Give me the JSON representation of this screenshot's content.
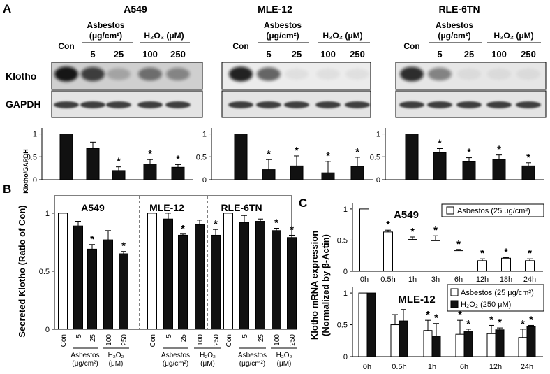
{
  "panel_a": {
    "letter": "A",
    "groups": [
      {
        "title": "A549"
      },
      {
        "title": "MLE-12"
      },
      {
        "title": "RLE-6TN"
      }
    ],
    "lane_con": "Con",
    "asbestos_header": "Asbestos",
    "asbestos_unit": "(μg/cm²)",
    "h2o2_header": "H₂O₂ (μM)",
    "doses": [
      "5",
      "25",
      "100",
      "250"
    ],
    "blot_labels": [
      "Klotho",
      "GAPDH"
    ],
    "y_label": "Klotho/GAPDH",
    "ticks": [
      "0",
      "0.5",
      "1"
    ]
  },
  "panel_b": {
    "letter": "B",
    "y_label": "Secreted Klotho (Ratio of Con)",
    "ticks": [
      "0",
      "0.5",
      "1"
    ],
    "groups": [
      "A549",
      "MLE-12",
      "RLE-6TN"
    ],
    "x_labels": [
      "Con",
      "5",
      "25",
      "100",
      "250"
    ],
    "asbestos_label": "Asbestos",
    "asbestos_unit": "(μg/cm²)",
    "h2o2_label": "H₂O₂",
    "h2o2_unit": "(μM)"
  },
  "panel_c": {
    "letter": "C",
    "y_label_1": "Klotho mRNA expression",
    "y_label_2": "(Normalized by β-Actin)",
    "ticks": [
      "0",
      "0.5",
      "1"
    ],
    "top_title": "A549",
    "bottom_title": "MLE-12",
    "legend_top": "Asbestos (25 μg/cm²)",
    "legend_asbestos": "Asbestos (25 μg/cm²)",
    "legend_h2o2": "H₂O₂ (250 μM)"
  },
  "significance_mark": "*",
  "chart_data": [
    {
      "type": "bar",
      "title": "A549",
      "categories": [
        "Con",
        "5",
        "25",
        "100",
        "250"
      ],
      "ylabel": "Klotho/GAPDH",
      "ylim": [
        0,
        1.1
      ],
      "values": [
        1.0,
        0.68,
        0.2,
        0.34,
        0.27
      ],
      "errors": [
        0.0,
        0.14,
        0.08,
        0.1,
        0.06
      ],
      "significant": [
        false,
        false,
        true,
        true,
        true
      ]
    },
    {
      "type": "bar",
      "title": "MLE-12",
      "categories": [
        "Con",
        "5",
        "25",
        "100",
        "250"
      ],
      "ylim": [
        0,
        1.1
      ],
      "values": [
        1.0,
        0.22,
        0.3,
        0.15,
        0.29
      ],
      "errors": [
        0.0,
        0.22,
        0.22,
        0.25,
        0.2
      ],
      "significant": [
        false,
        true,
        true,
        true,
        true
      ]
    },
    {
      "type": "bar",
      "title": "RLE-6TN",
      "categories": [
        "Con",
        "5",
        "25",
        "100",
        "250"
      ],
      "ylim": [
        0,
        1.1
      ],
      "values": [
        1.0,
        0.59,
        0.39,
        0.44,
        0.3
      ],
      "errors": [
        0.0,
        0.09,
        0.09,
        0.1,
        0.07
      ],
      "significant": [
        false,
        true,
        true,
        true,
        true
      ]
    },
    {
      "type": "bar",
      "title": "A549",
      "categories": [
        "Con",
        "5",
        "25",
        "100",
        "250"
      ],
      "ylabel": "Secreted Klotho (Ratio of Con)",
      "ylim": [
        0,
        1.15
      ],
      "values": [
        1.0,
        0.89,
        0.69,
        0.77,
        0.65
      ],
      "errors": [
        0.0,
        0.04,
        0.04,
        0.08,
        0.02
      ],
      "significant": [
        false,
        false,
        true,
        false,
        true
      ]
    },
    {
      "type": "bar",
      "title": "MLE-12",
      "categories": [
        "Con",
        "5",
        "25",
        "100",
        "250"
      ],
      "ylim": [
        0,
        1.15
      ],
      "values": [
        1.0,
        0.95,
        0.81,
        0.9,
        0.81
      ],
      "errors": [
        0.0,
        0.05,
        0.01,
        0.04,
        0.05
      ],
      "significant": [
        false,
        false,
        true,
        false,
        true
      ]
    },
    {
      "type": "bar",
      "title": "RLE-6TN",
      "categories": [
        "Con",
        "5",
        "25",
        "100",
        "250"
      ],
      "ylim": [
        0,
        1.15
      ],
      "values": [
        1.0,
        0.92,
        0.93,
        0.85,
        0.79
      ],
      "errors": [
        0.0,
        0.06,
        0.02,
        0.02,
        0.02
      ],
      "significant": [
        false,
        false,
        false,
        true,
        true
      ]
    },
    {
      "type": "bar",
      "title": "A549",
      "categories": [
        "0h",
        "0.5h",
        "1h",
        "3h",
        "6h",
        "12h",
        "18h",
        "24h"
      ],
      "ylabel": "Klotho mRNA expression (Normalized by β-Actin)",
      "ylim": [
        0,
        1.1
      ],
      "series": [
        {
          "name": "Asbestos (25 μg/cm²)",
          "values": [
            1.0,
            0.63,
            0.51,
            0.49,
            0.33,
            0.17,
            0.21,
            0.17
          ],
          "errors": [
            0.0,
            0.03,
            0.04,
            0.08,
            0.02,
            0.03,
            0.01,
            0.03
          ]
        }
      ],
      "significant": [
        false,
        true,
        true,
        true,
        true,
        true,
        true,
        true
      ]
    },
    {
      "type": "bar",
      "title": "MLE-12",
      "categories": [
        "0h",
        "0.5h",
        "1h",
        "6h",
        "12h",
        "24h"
      ],
      "ylim": [
        0,
        1.1
      ],
      "series": [
        {
          "name": "Asbestos (25 μg/cm²)",
          "values": [
            1.0,
            0.5,
            0.41,
            0.35,
            0.36,
            0.3
          ],
          "errors": [
            0.0,
            0.16,
            0.16,
            0.22,
            0.13,
            0.13
          ]
        },
        {
          "name": "H₂O₂ (250 μM)",
          "values": [
            1.0,
            0.56,
            0.32,
            0.39,
            0.42,
            0.47
          ],
          "errors": [
            0.0,
            0.18,
            0.2,
            0.04,
            0.03,
            0.02
          ]
        }
      ],
      "significant_asbestos": [
        false,
        false,
        true,
        true,
        true,
        true
      ],
      "significant_h2o2": [
        false,
        false,
        true,
        true,
        true,
        true
      ]
    }
  ]
}
